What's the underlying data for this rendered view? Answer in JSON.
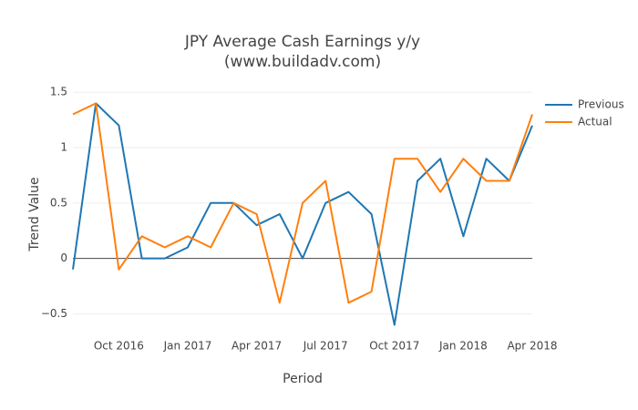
{
  "chart_data": {
    "type": "line",
    "title": "JPY Average Cash Earnings y/y",
    "subtitle": "(www.buildadv.com)",
    "x_label": "Period",
    "y_label": "Trend Value",
    "x": [
      "2016-08",
      "2016-09",
      "2016-10",
      "2016-11",
      "2016-12",
      "2017-01",
      "2017-02",
      "2017-03",
      "2017-04",
      "2017-05",
      "2017-06",
      "2017-07",
      "2017-08",
      "2017-09",
      "2017-10",
      "2017-11",
      "2017-12",
      "2018-01",
      "2018-02",
      "2018-03",
      "2018-04"
    ],
    "series": [
      {
        "name": "Previous",
        "color": "#1f77b4",
        "values": [
          -0.1,
          1.4,
          1.2,
          0,
          0,
          0.1,
          0.5,
          0.5,
          0.3,
          0.4,
          0,
          0.5,
          0.6,
          0.4,
          -0.6,
          0.7,
          0.9,
          0.2,
          0.9,
          0.7,
          1.2
        ]
      },
      {
        "name": "Actual",
        "color": "#ff7f0e",
        "values": [
          1.3,
          1.4,
          -0.1,
          0.2,
          0.1,
          0.2,
          0.1,
          0.5,
          0.4,
          -0.4,
          0.5,
          0.7,
          -0.4,
          -0.3,
          0.9,
          0.9,
          0.6,
          0.9,
          0.7,
          0.7,
          1.3
        ]
      }
    ],
    "xlim": [
      "2016-08",
      "2018-04"
    ],
    "xticks": [
      {
        "value": "2016-10",
        "label": "Oct 2016"
      },
      {
        "value": "2017-01",
        "label": "Jan 2017"
      },
      {
        "value": "2017-04",
        "label": "Apr 2017"
      },
      {
        "value": "2017-07",
        "label": "Jul 2017"
      },
      {
        "value": "2017-10",
        "label": "Oct 2017"
      },
      {
        "value": "2018-01",
        "label": "Jan 2018"
      },
      {
        "value": "2018-04",
        "label": "Apr 2018"
      }
    ],
    "ylim": [
      -0.71,
      1.51
    ],
    "yticks": [
      {
        "value": -0.5,
        "label": "−0.5"
      },
      0,
      0.5,
      1,
      1.5
    ],
    "grid": true,
    "legend": "top-right"
  }
}
